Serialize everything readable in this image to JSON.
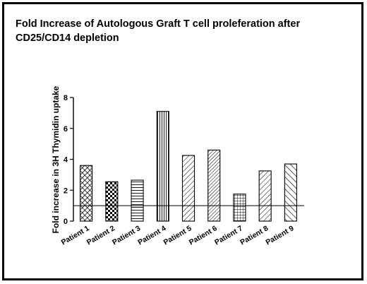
{
  "chart_data": {
    "type": "bar",
    "title": "Fold Increase of Autologous Graft T cell proleferation after\nCD25/CD14 depletion",
    "ylabel": "Fold increase in 3H Thymidin uptake",
    "xlabel": "",
    "categories": [
      "Patient 1",
      "Patient 2",
      "Patient 3",
      "Patient 4",
      "Patient 5",
      "Patient 6",
      "Patient 7",
      "Patient 8",
      "Patient 9"
    ],
    "values": [
      3.6,
      2.55,
      2.65,
      7.1,
      4.25,
      4.6,
      1.75,
      3.25,
      3.7
    ],
    "patterns": [
      "crosshatch",
      "checker",
      "horizontal",
      "vertical",
      "diagonal",
      "diagonal-dense",
      "grid",
      "diagonal",
      "diagonal-reverse"
    ],
    "ylim": [
      0,
      8
    ],
    "yticks": [
      0,
      2,
      4,
      6,
      8
    ],
    "reference_line": 1,
    "grid": false,
    "legend": "none"
  }
}
